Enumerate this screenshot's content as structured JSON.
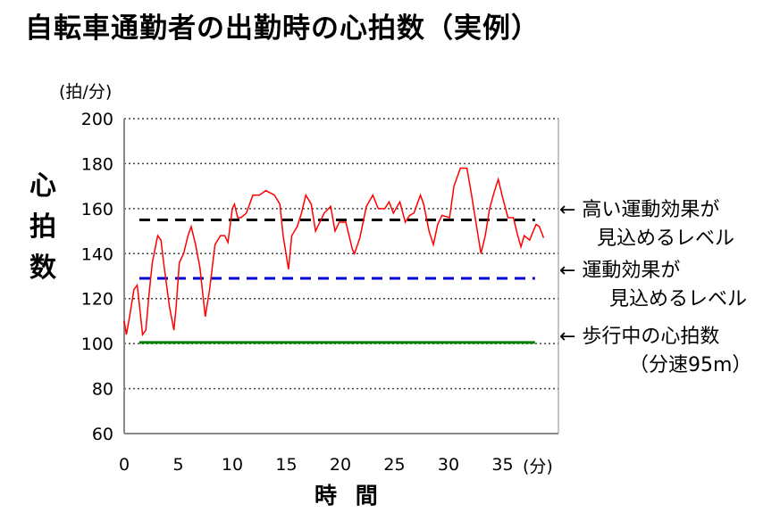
{
  "title": "自転車通勤者の出勤時の心拍数（実例）",
  "chart_data": {
    "type": "line",
    "title": "自転車通勤者の出勤時の心拍数（実例）",
    "xlabel": "時 間",
    "xunit": "(分)",
    "ylabel": "心拍数",
    "yunit": "(拍/分)",
    "xlim": [
      0,
      40
    ],
    "ylim": [
      60,
      200
    ],
    "xticks": [
      0,
      5,
      10,
      15,
      20,
      25,
      30,
      35
    ],
    "yticks": [
      60,
      80,
      100,
      120,
      140,
      160,
      180,
      200
    ],
    "grid": true,
    "series": [
      {
        "name": "心拍数",
        "color": "#ff0000",
        "x": [
          0.0,
          0.2,
          0.5,
          0.9,
          1.2,
          1.3,
          1.7,
          2.0,
          2.3,
          2.6,
          3.1,
          3.4,
          3.7,
          4.2,
          4.6,
          4.8,
          5.1,
          5.5,
          5.9,
          6.2,
          6.6,
          7.0,
          7.5,
          7.9,
          8.4,
          8.9,
          9.3,
          9.6,
          10.0,
          10.2,
          10.5,
          10.8,
          11.3,
          11.9,
          12.5,
          13.1,
          13.9,
          14.4,
          14.7,
          15.2,
          15.5,
          16.0,
          16.4,
          16.8,
          17.3,
          17.7,
          18.1,
          18.5,
          19.1,
          19.5,
          19.9,
          20.5,
          21.1,
          21.3,
          21.8,
          22.4,
          23.0,
          23.5,
          24.1,
          24.5,
          24.9,
          25.5,
          26.0,
          26.4,
          26.8,
          27.4,
          27.7,
          28.2,
          28.6,
          29.0,
          29.4,
          30.1,
          30.5,
          31.1,
          31.7,
          32.1,
          32.8,
          33.0,
          33.4,
          33.8,
          34.2,
          34.6,
          35.0,
          35.5,
          36.0,
          36.4,
          36.7,
          37.0,
          37.5,
          38.1,
          38.4,
          38.8
        ],
        "y": [
          110,
          104,
          112,
          124,
          126,
          122,
          104,
          106,
          122,
          136,
          148,
          146,
          134,
          116,
          106,
          116,
          136,
          140,
          148,
          152,
          144,
          134,
          112,
          124,
          144,
          148,
          148,
          145,
          160,
          162,
          156,
          156,
          158,
          166,
          166,
          168,
          166,
          162,
          148,
          133,
          148,
          152,
          158,
          166,
          162,
          150,
          154,
          158,
          161,
          150,
          154,
          154,
          142,
          140,
          147,
          161,
          166,
          160,
          160,
          163,
          158,
          163,
          154,
          157,
          158,
          166,
          162,
          150,
          144,
          153,
          157,
          156,
          170,
          178,
          178,
          167,
          146,
          140,
          148,
          160,
          167,
          173,
          165,
          156,
          156,
          148,
          143,
          148,
          146,
          153,
          152,
          147
        ]
      }
    ],
    "reference_lines": [
      {
        "value": 155,
        "color": "#000000",
        "style": "dashed",
        "x": [
          1.4,
          38
        ],
        "label": "← 高い運動効果が",
        "label2": "見込めるレベル"
      },
      {
        "value": 129,
        "color": "#0000cc",
        "style": "dashed",
        "x": [
          1.4,
          38
        ],
        "label": "← 運動効果が",
        "label2": "見込めるレベル"
      },
      {
        "value": 100.5,
        "color": "#008000",
        "style": "solid",
        "x": [
          1.4,
          38
        ],
        "label": "← 歩行中の心拍数",
        "label2": "（分速95m）"
      }
    ]
  }
}
